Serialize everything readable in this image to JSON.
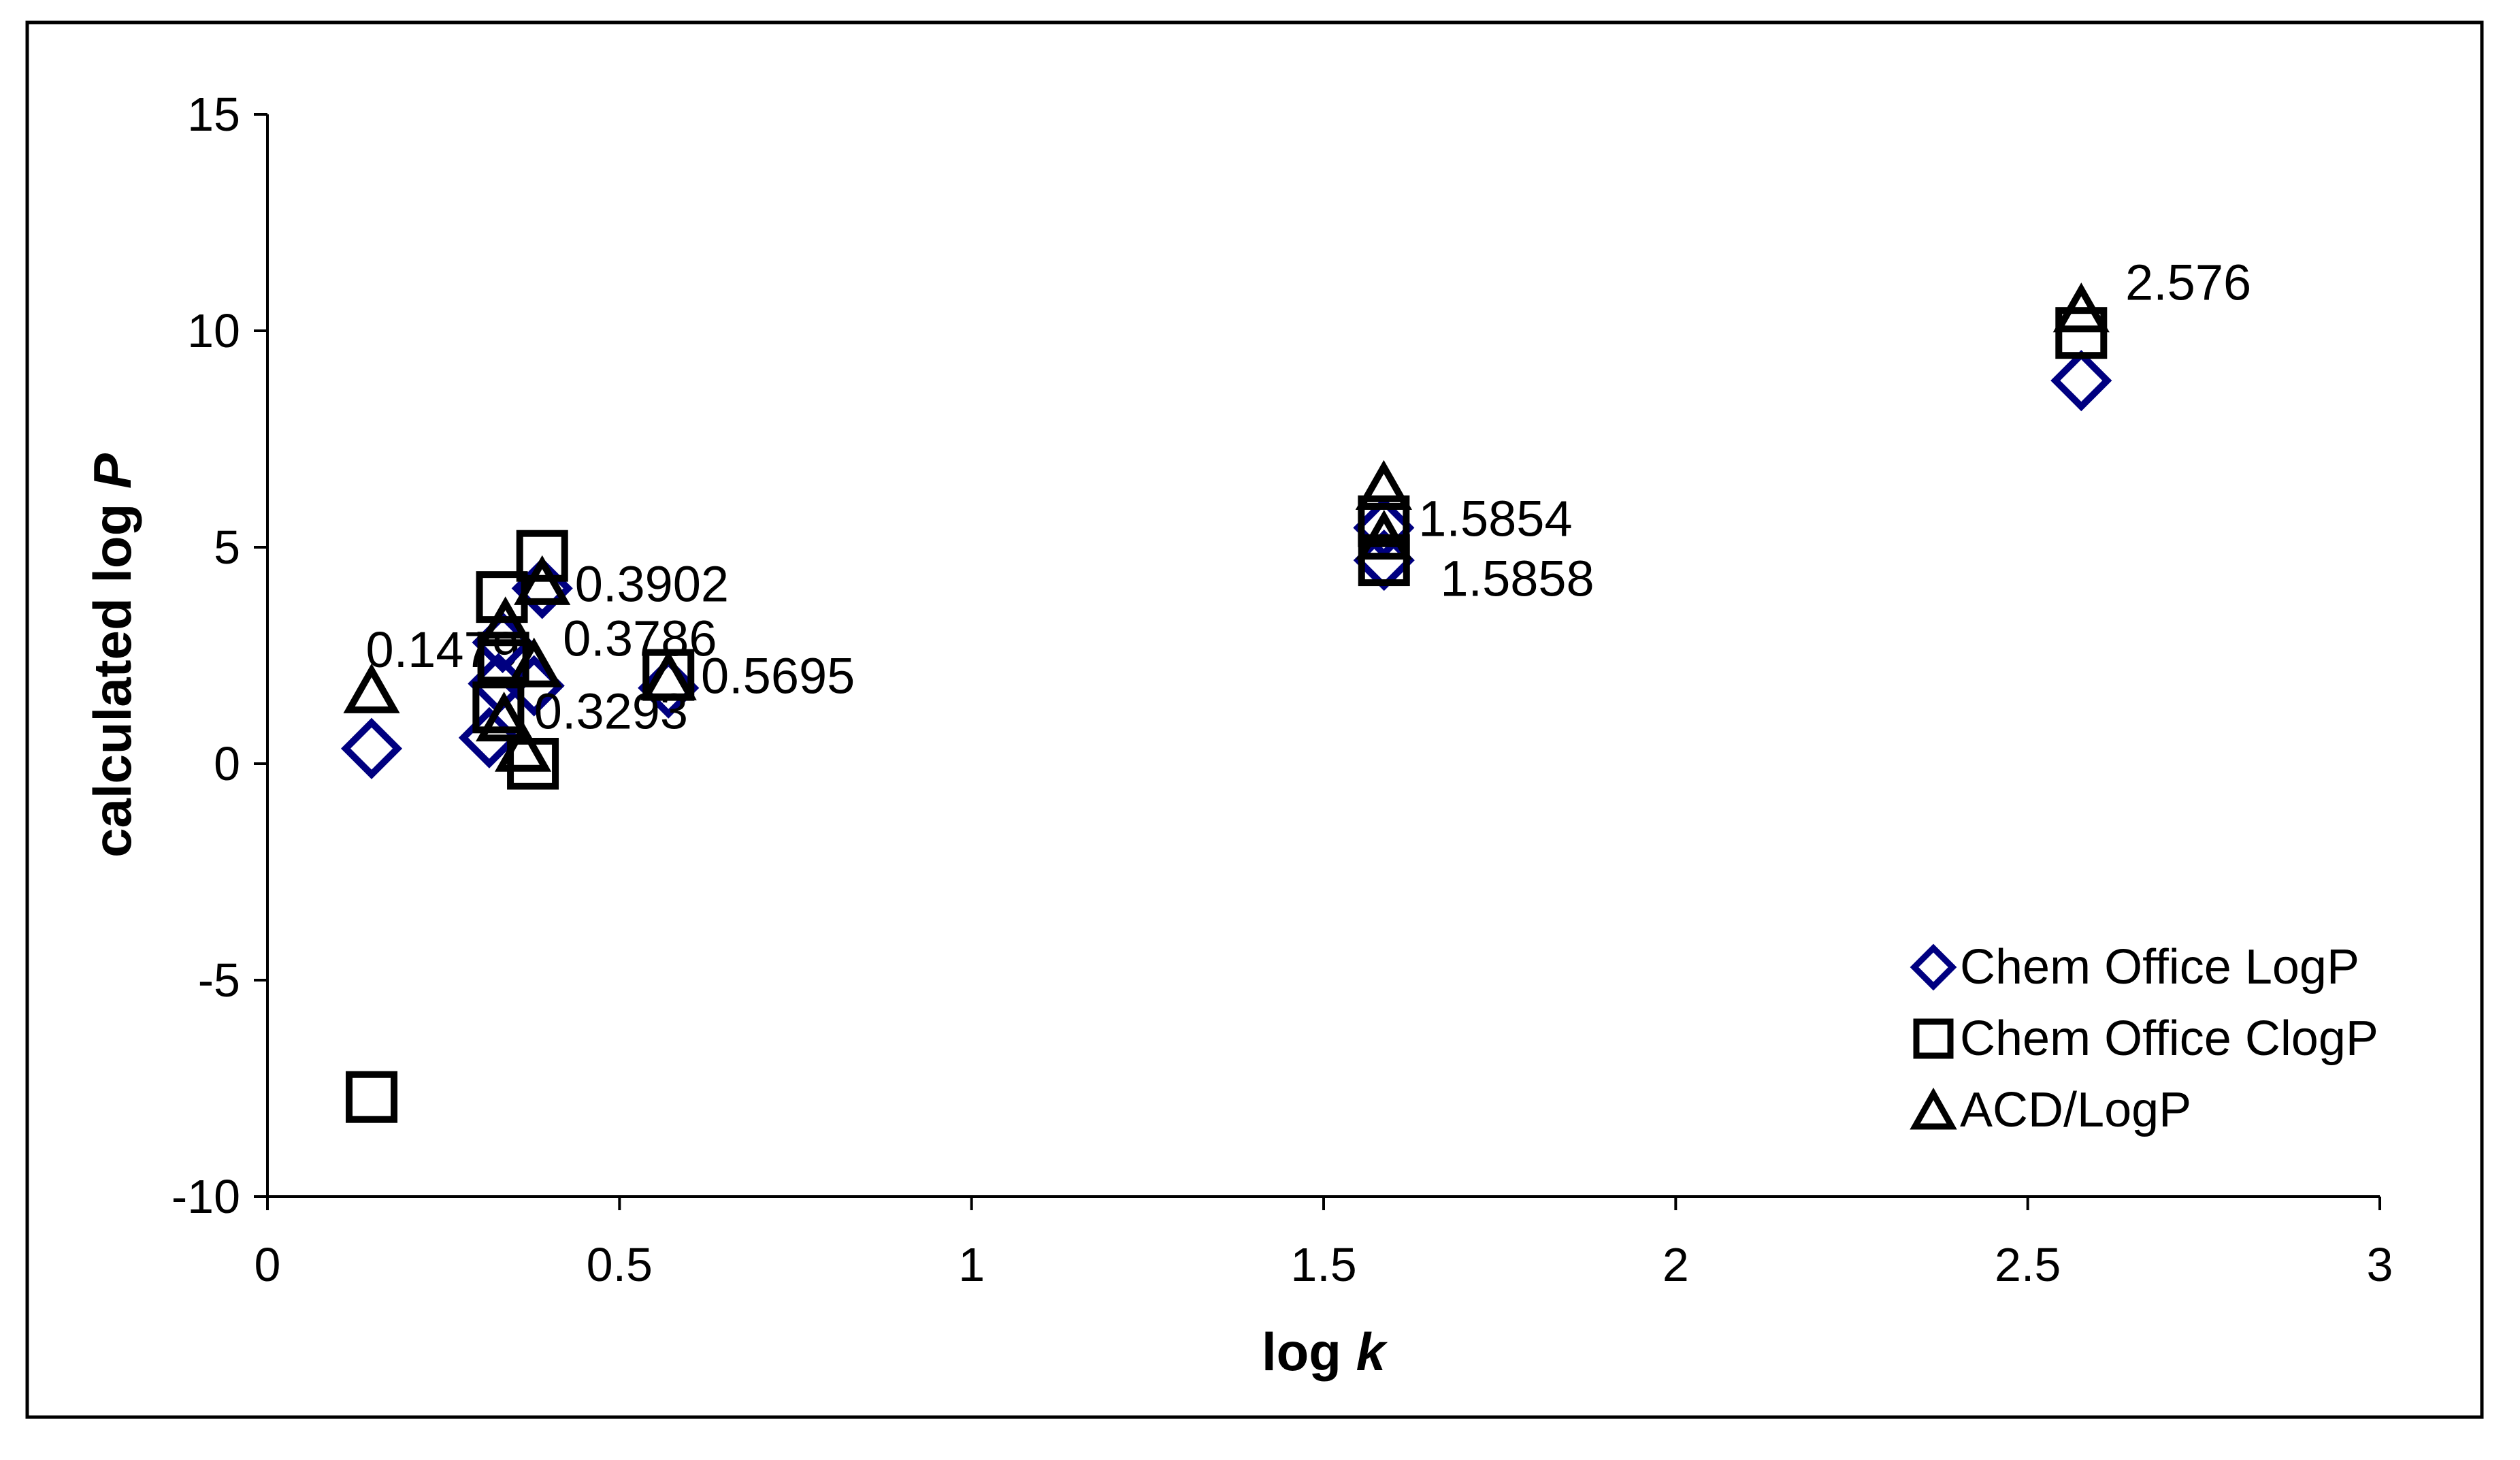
{
  "figure": {
    "background": "#ffffff",
    "border_color": "#000000"
  },
  "chart_data": {
    "type": "scatter",
    "title": "",
    "xlabel": "log k",
    "ylabel": "calculated log P",
    "xlim": [
      0,
      3
    ],
    "ylim": [
      -10,
      15
    ],
    "x_ticks": [
      0,
      0.5,
      1,
      1.5,
      2,
      2.5,
      3
    ],
    "x_tick_labels": [
      "0",
      "0.5",
      "1",
      "1.5",
      "2",
      "2.5",
      "3"
    ],
    "y_ticks": [
      15,
      10,
      5,
      0,
      -5,
      -10
    ],
    "y_tick_labels": [
      "15",
      "10",
      "5",
      "0",
      "-5",
      "-10"
    ],
    "grid": false,
    "legend_position": "inside-right-lower",
    "series": [
      {
        "name": "Chem Office LogP",
        "marker": "diamond",
        "color": "#000080",
        "points": [
          [
            0.1479,
            0.35
          ],
          [
            0.315,
            0.6
          ],
          [
            0.328,
            1.85
          ],
          [
            0.334,
            2.8
          ],
          [
            0.3786,
            1.8
          ],
          [
            0.3902,
            4.05
          ],
          [
            0.5695,
            1.75
          ],
          [
            1.5854,
            5.45
          ],
          [
            1.5858,
            4.7
          ],
          [
            2.576,
            8.85
          ]
        ]
      },
      {
        "name": "Chem Office ClogP",
        "marker": "square",
        "color": "#000000",
        "points": [
          [
            0.1479,
            -7.7
          ],
          [
            0.328,
            1.3
          ],
          [
            0.333,
            3.85
          ],
          [
            0.335,
            2.45
          ],
          [
            0.377,
            0.0
          ],
          [
            0.3902,
            4.8
          ],
          [
            0.5695,
            2.05
          ],
          [
            1.5854,
            5.6
          ],
          [
            1.5858,
            4.7
          ],
          [
            2.576,
            9.95
          ]
        ]
      },
      {
        "name": "ACD/LogP",
        "marker": "triangle",
        "color": "#000000",
        "points": [
          [
            0.1479,
            1.7
          ],
          [
            0.336,
            1.05
          ],
          [
            0.338,
            3.25
          ],
          [
            0.363,
            0.35
          ],
          [
            0.3786,
            2.3
          ],
          [
            0.3902,
            4.2
          ],
          [
            0.5695,
            2.0
          ],
          [
            1.5854,
            6.4
          ],
          [
            1.5858,
            5.25
          ],
          [
            2.576,
            10.5
          ]
        ]
      }
    ],
    "point_labels": [
      {
        "text": "0.1479",
        "x": 0.249,
        "y": 2.63,
        "layer": "below"
      },
      {
        "text": "0.3902",
        "x": 0.546,
        "y": 4.15,
        "layer": "above"
      },
      {
        "text": "0.3786",
        "x": 0.529,
        "y": 2.89,
        "layer": "above"
      },
      {
        "text": "0.3293",
        "x": 0.488,
        "y": 1.21,
        "layer": "above"
      },
      {
        "text": "0.5695",
        "x": 0.725,
        "y": 2.03,
        "layer": "above"
      },
      {
        "text": "1.5854",
        "x": 1.744,
        "y": 5.66,
        "layer": "above"
      },
      {
        "text": "1.5858",
        "x": 1.775,
        "y": 4.28,
        "layer": "above"
      },
      {
        "text": "2.576",
        "x": 2.728,
        "y": 11.12,
        "layer": "above"
      }
    ]
  }
}
